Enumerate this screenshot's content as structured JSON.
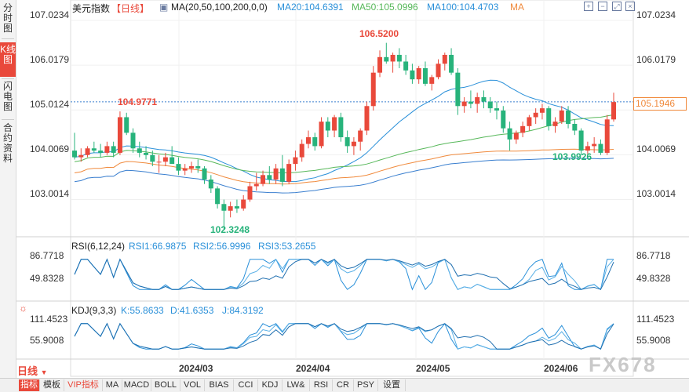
{
  "sidebar": {
    "tabs": [
      {
        "label": "分时图",
        "active": false
      },
      {
        "label": "K线图",
        "active": true
      },
      {
        "label": "闪电图",
        "active": false
      },
      {
        "label": "合约资料",
        "active": false
      }
    ]
  },
  "header": {
    "symbol": "美元指数",
    "period": "【日线】",
    "ma_label": "MA(20,50,100,200,0,0)",
    "ma20": "MA20:104.6391",
    "ma50": "MA50:105.0996",
    "ma100": "MA100:104.4703",
    "ma_extra": "MA"
  },
  "main_chart": {
    "y_ticks": [
      "107.0234",
      "106.0179",
      "105.0124",
      "104.0069",
      "103.0014"
    ],
    "high_label": "106.5200",
    "low_label": "102.3248",
    "left_high_label": "104.9771",
    "recent_low_label": "103.9926",
    "current_price": "105.1946"
  },
  "rsi": {
    "label": "RSI(6,12,24)",
    "rsi1": "RSI1:66.9875",
    "rsi2": "RSI2:56.9996",
    "rsi3": "RSI3:53.2655",
    "y_ticks": [
      "86.7718",
      "49.8328"
    ]
  },
  "kdj": {
    "label": "KDJ(9,3,3)",
    "k": "K:55.8633",
    "d": "D:41.6353",
    "j": "J:84.3192",
    "y_ticks": [
      "111.4523",
      "55.9008"
    ]
  },
  "x_axis": {
    "dates": [
      "2024/03",
      "2024/04",
      "2024/05",
      "2024/06"
    ]
  },
  "period_selector": "日线",
  "bottom_tabs": [
    "指标",
    "模板",
    "VIP指标",
    "MA",
    "MACD",
    "BOLL",
    "VOL",
    "BIAS",
    "CCI",
    "KDJ",
    "LW&",
    "RSI",
    "CR",
    "PSY",
    "设置"
  ],
  "watermark": "FX678",
  "colors": {
    "up": "#e9493b",
    "down": "#27b37b",
    "ma20": "#2a90d9",
    "ma50": "#57b85a",
    "ma100": "#f08a3c",
    "ma200": "#3a7fcf",
    "accent": "#e9493b"
  },
  "chart_data": {
    "type": "candlestick",
    "note_series": "daily OHLC of US Dollar Index, estimated",
    "candles": [
      [
        104.1,
        104.5,
        103.9,
        103.95
      ],
      [
        103.95,
        104.15,
        103.85,
        104.0
      ],
      [
        104.0,
        104.2,
        103.95,
        104.15
      ],
      [
        104.15,
        104.3,
        104.05,
        104.1
      ],
      [
        104.1,
        104.25,
        103.95,
        104.05
      ],
      [
        104.05,
        104.3,
        104.0,
        104.2
      ],
      [
        104.2,
        104.3,
        103.95,
        104.05
      ],
      [
        104.05,
        104.98,
        104.0,
        104.85
      ],
      [
        104.85,
        104.95,
        104.45,
        104.5
      ],
      [
        104.5,
        104.6,
        104.05,
        104.15
      ],
      [
        104.15,
        104.3,
        103.95,
        104.05
      ],
      [
        104.05,
        104.2,
        103.9,
        104.0
      ],
      [
        104.0,
        104.1,
        103.75,
        103.85
      ],
      [
        103.85,
        104.0,
        103.6,
        103.85
      ],
      [
        103.85,
        104.05,
        103.75,
        103.95
      ],
      [
        103.95,
        104.2,
        103.85,
        103.8
      ],
      [
        103.8,
        103.95,
        103.55,
        103.65
      ],
      [
        103.65,
        103.8,
        103.55,
        103.7
      ],
      [
        103.7,
        103.85,
        103.6,
        103.75
      ],
      [
        103.75,
        103.9,
        103.6,
        103.7
      ],
      [
        103.7,
        103.75,
        103.35,
        103.45
      ],
      [
        103.45,
        103.55,
        103.15,
        103.25
      ],
      [
        103.25,
        103.3,
        102.8,
        102.9
      ],
      [
        102.9,
        103.0,
        102.32,
        102.75
      ],
      [
        102.75,
        102.95,
        102.6,
        102.85
      ],
      [
        102.85,
        103.0,
        102.7,
        102.8
      ],
      [
        102.8,
        103.1,
        102.75,
        103.0
      ],
      [
        103.0,
        103.4,
        102.95,
        103.3
      ],
      [
        103.3,
        103.6,
        103.2,
        103.35
      ],
      [
        103.35,
        103.65,
        103.3,
        103.55
      ],
      [
        103.55,
        103.75,
        103.35,
        103.45
      ],
      [
        103.45,
        103.8,
        103.35,
        103.7
      ],
      [
        103.7,
        104.0,
        103.3,
        103.4
      ],
      [
        103.4,
        103.9,
        103.35,
        103.8
      ],
      [
        103.8,
        104.1,
        103.65,
        103.95
      ],
      [
        103.95,
        104.35,
        103.85,
        104.25
      ],
      [
        104.25,
        104.55,
        104.15,
        104.4
      ],
      [
        104.4,
        104.5,
        104.1,
        104.2
      ],
      [
        104.2,
        104.85,
        104.15,
        104.75
      ],
      [
        104.75,
        104.85,
        104.4,
        104.55
      ],
      [
        104.55,
        104.9,
        104.4,
        104.85
      ],
      [
        104.85,
        104.95,
        104.3,
        104.4
      ],
      [
        104.4,
        104.55,
        104.05,
        104.2
      ],
      [
        104.2,
        104.4,
        104.0,
        104.3
      ],
      [
        104.3,
        104.6,
        104.1,
        104.55
      ],
      [
        104.55,
        105.2,
        104.45,
        105.1
      ],
      [
        105.1,
        106.0,
        105.0,
        105.85
      ],
      [
        105.85,
        106.35,
        105.75,
        106.2
      ],
      [
        106.2,
        106.52,
        106.05,
        106.1
      ],
      [
        106.1,
        106.3,
        105.85,
        106.25
      ],
      [
        106.25,
        106.4,
        105.95,
        106.1
      ],
      [
        106.1,
        106.25,
        105.8,
        105.9
      ],
      [
        105.9,
        106.05,
        105.6,
        105.7
      ],
      [
        105.7,
        106.0,
        105.6,
        105.95
      ],
      [
        105.95,
        106.1,
        105.55,
        105.6
      ],
      [
        105.6,
        105.8,
        105.45,
        105.75
      ],
      [
        105.75,
        106.15,
        105.7,
        106.05
      ],
      [
        106.05,
        106.3,
        105.9,
        106.25
      ],
      [
        106.25,
        106.4,
        105.8,
        105.85
      ],
      [
        105.85,
        105.95,
        104.9,
        105.1
      ],
      [
        105.1,
        105.3,
        104.95,
        105.2
      ],
      [
        105.2,
        105.45,
        105.05,
        105.15
      ],
      [
        105.15,
        105.4,
        104.95,
        105.3
      ],
      [
        105.3,
        105.45,
        105.05,
        105.2
      ],
      [
        105.2,
        105.3,
        104.95,
        105.05
      ],
      [
        105.05,
        105.2,
        104.8,
        105.0
      ],
      [
        105.0,
        105.1,
        104.5,
        104.6
      ],
      [
        104.6,
        104.75,
        104.1,
        104.35
      ],
      [
        104.35,
        104.55,
        104.25,
        104.5
      ],
      [
        104.5,
        104.75,
        104.4,
        104.65
      ],
      [
        104.65,
        104.9,
        104.55,
        104.85
      ],
      [
        104.85,
        105.05,
        104.7,
        104.95
      ],
      [
        104.95,
        105.15,
        104.8,
        105.05
      ],
      [
        105.05,
        105.1,
        104.55,
        104.65
      ],
      [
        104.65,
        104.85,
        104.5,
        104.75
      ],
      [
        104.75,
        105.1,
        104.7,
        105.0
      ],
      [
        105.0,
        105.1,
        104.6,
        104.7
      ],
      [
        104.7,
        104.8,
        104.45,
        104.55
      ],
      [
        104.55,
        104.6,
        104.0,
        104.1
      ],
      [
        104.1,
        104.3,
        103.99,
        104.2
      ],
      [
        104.2,
        104.4,
        104.05,
        104.25
      ],
      [
        104.25,
        104.35,
        104.0,
        104.05
      ],
      [
        104.05,
        104.9,
        104.0,
        104.8
      ],
      [
        104.8,
        105.4,
        104.75,
        105.19
      ]
    ],
    "y_range": [
      102.2,
      107.2
    ],
    "x_ticks": [
      "2024/03",
      "2024/04",
      "2024/05",
      "2024/06"
    ],
    "rsi_range": [
      20,
      100
    ],
    "kdj_range": [
      -10,
      130
    ]
  }
}
